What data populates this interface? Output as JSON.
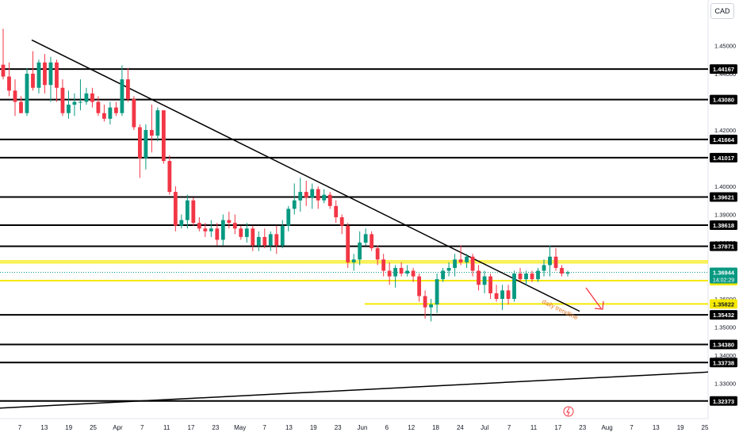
{
  "currency": "CAD",
  "chart_data": {
    "type": "candlestick",
    "ylim": [
      1.32,
      1.46
    ],
    "price_ticks": [
      "1.45000",
      "1.44000",
      "1.43000",
      "1.42000",
      "1.41000",
      "1.40000",
      "1.39000",
      "1.38000",
      "1.36000",
      "1.35000",
      "1.34000",
      "1.33000"
    ],
    "time_ticks": [
      "7",
      "13",
      "19",
      "25",
      "Apr",
      "7",
      "11",
      "17",
      "23",
      "May",
      "7",
      "13",
      "19",
      "23",
      "Jun",
      "6",
      "12",
      "18",
      "24",
      "Jul",
      "7",
      "11",
      "17",
      "23",
      "Aug",
      "7",
      "13",
      "19",
      "25"
    ],
    "horizontal_levels": [
      {
        "price": 1.44167,
        "label": "1.44167"
      },
      {
        "price": 1.4308,
        "label": "1.43080"
      },
      {
        "price": 1.41664,
        "label": "1.41664"
      },
      {
        "price": 1.41017,
        "label": "1.41017"
      },
      {
        "price": 1.39621,
        "label": "1.39621"
      },
      {
        "price": 1.38618,
        "label": "1.38618"
      },
      {
        "price": 1.37871,
        "label": "1.37871"
      },
      {
        "price": 1.35432,
        "label": "1.35432"
      },
      {
        "price": 1.3438,
        "label": "1.34380"
      },
      {
        "price": 1.33738,
        "label": "1.33738"
      },
      {
        "price": 1.32373,
        "label": "1.32373"
      }
    ],
    "yellow_levels": [
      {
        "price": 1.36647,
        "label": "1.36647"
      },
      {
        "price": 1.35822,
        "label": "1.35822"
      }
    ],
    "current_price": {
      "price": 1.36944,
      "label": "1.36944",
      "countdown": "14:02:29"
    },
    "annotation": "daily trendline",
    "colors": {
      "up": "#089981",
      "down": "#f23645",
      "level": "#000000",
      "zone": "#f5e900",
      "current": "#089981",
      "arrow": "#f23645",
      "annotation": "#e07b2a"
    },
    "candles": [
      {
        "o": 1.4432,
        "h": 1.456,
        "l": 1.438,
        "c": 1.439
      },
      {
        "o": 1.439,
        "h": 1.444,
        "l": 1.432,
        "c": 1.434
      },
      {
        "o": 1.434,
        "h": 1.438,
        "l": 1.425,
        "c": 1.43
      },
      {
        "o": 1.43,
        "h": 1.432,
        "l": 1.426,
        "c": 1.426
      },
      {
        "o": 1.426,
        "h": 1.442,
        "l": 1.425,
        "c": 1.44
      },
      {
        "o": 1.44,
        "h": 1.448,
        "l": 1.434,
        "c": 1.435
      },
      {
        "o": 1.435,
        "h": 1.445,
        "l": 1.433,
        "c": 1.444
      },
      {
        "o": 1.444,
        "h": 1.447,
        "l": 1.433,
        "c": 1.436
      },
      {
        "o": 1.436,
        "h": 1.446,
        "l": 1.43,
        "c": 1.444
      },
      {
        "o": 1.444,
        "h": 1.445,
        "l": 1.43,
        "c": 1.435
      },
      {
        "o": 1.435,
        "h": 1.438,
        "l": 1.425,
        "c": 1.426
      },
      {
        "o": 1.426,
        "h": 1.434,
        "l": 1.424,
        "c": 1.429
      },
      {
        "o": 1.429,
        "h": 1.433,
        "l": 1.425,
        "c": 1.43
      },
      {
        "o": 1.43,
        "h": 1.438,
        "l": 1.427,
        "c": 1.43
      },
      {
        "o": 1.43,
        "h": 1.435,
        "l": 1.429,
        "c": 1.433
      },
      {
        "o": 1.433,
        "h": 1.435,
        "l": 1.428,
        "c": 1.43
      },
      {
        "o": 1.43,
        "h": 1.432,
        "l": 1.425,
        "c": 1.426
      },
      {
        "o": 1.426,
        "h": 1.429,
        "l": 1.423,
        "c": 1.424
      },
      {
        "o": 1.424,
        "h": 1.43,
        "l": 1.422,
        "c": 1.428
      },
      {
        "o": 1.428,
        "h": 1.43,
        "l": 1.425,
        "c": 1.426
      },
      {
        "o": 1.426,
        "h": 1.443,
        "l": 1.425,
        "c": 1.438
      },
      {
        "o": 1.438,
        "h": 1.442,
        "l": 1.43,
        "c": 1.431
      },
      {
        "o": 1.431,
        "h": 1.432,
        "l": 1.42,
        "c": 1.421
      },
      {
        "o": 1.421,
        "h": 1.422,
        "l": 1.403,
        "c": 1.41
      },
      {
        "o": 1.41,
        "h": 1.422,
        "l": 1.406,
        "c": 1.42
      },
      {
        "o": 1.42,
        "h": 1.429,
        "l": 1.412,
        "c": 1.418
      },
      {
        "o": 1.418,
        "h": 1.428,
        "l": 1.416,
        "c": 1.427
      },
      {
        "o": 1.427,
        "h": 1.427,
        "l": 1.408,
        "c": 1.409
      },
      {
        "o": 1.409,
        "h": 1.411,
        "l": 1.397,
        "c": 1.398
      },
      {
        "o": 1.398,
        "h": 1.4,
        "l": 1.384,
        "c": 1.386
      },
      {
        "o": 1.386,
        "h": 1.39,
        "l": 1.385,
        "c": 1.388
      },
      {
        "o": 1.388,
        "h": 1.397,
        "l": 1.385,
        "c": 1.395
      },
      {
        "o": 1.395,
        "h": 1.396,
        "l": 1.386,
        "c": 1.387
      },
      {
        "o": 1.387,
        "h": 1.389,
        "l": 1.384,
        "c": 1.385
      },
      {
        "o": 1.385,
        "h": 1.387,
        "l": 1.382,
        "c": 1.384
      },
      {
        "o": 1.384,
        "h": 1.388,
        "l": 1.382,
        "c": 1.385
      },
      {
        "o": 1.385,
        "h": 1.387,
        "l": 1.379,
        "c": 1.381
      },
      {
        "o": 1.381,
        "h": 1.39,
        "l": 1.379,
        "c": 1.388
      },
      {
        "o": 1.388,
        "h": 1.391,
        "l": 1.385,
        "c": 1.387
      },
      {
        "o": 1.387,
        "h": 1.39,
        "l": 1.383,
        "c": 1.385
      },
      {
        "o": 1.385,
        "h": 1.386,
        "l": 1.381,
        "c": 1.382
      },
      {
        "o": 1.382,
        "h": 1.387,
        "l": 1.38,
        "c": 1.385
      },
      {
        "o": 1.385,
        "h": 1.386,
        "l": 1.377,
        "c": 1.379
      },
      {
        "o": 1.379,
        "h": 1.384,
        "l": 1.377,
        "c": 1.382
      },
      {
        "o": 1.382,
        "h": 1.385,
        "l": 1.378,
        "c": 1.379
      },
      {
        "o": 1.379,
        "h": 1.384,
        "l": 1.377,
        "c": 1.383
      },
      {
        "o": 1.383,
        "h": 1.386,
        "l": 1.376,
        "c": 1.379
      },
      {
        "o": 1.379,
        "h": 1.388,
        "l": 1.378,
        "c": 1.386
      },
      {
        "o": 1.386,
        "h": 1.393,
        "l": 1.384,
        "c": 1.392
      },
      {
        "o": 1.392,
        "h": 1.401,
        "l": 1.39,
        "c": 1.395
      },
      {
        "o": 1.395,
        "h": 1.403,
        "l": 1.391,
        "c": 1.398
      },
      {
        "o": 1.398,
        "h": 1.402,
        "l": 1.393,
        "c": 1.396
      },
      {
        "o": 1.396,
        "h": 1.401,
        "l": 1.392,
        "c": 1.399
      },
      {
        "o": 1.399,
        "h": 1.4,
        "l": 1.392,
        "c": 1.395
      },
      {
        "o": 1.395,
        "h": 1.399,
        "l": 1.394,
        "c": 1.397
      },
      {
        "o": 1.397,
        "h": 1.398,
        "l": 1.392,
        "c": 1.393
      },
      {
        "o": 1.393,
        "h": 1.395,
        "l": 1.387,
        "c": 1.389
      },
      {
        "o": 1.389,
        "h": 1.39,
        "l": 1.383,
        "c": 1.386
      },
      {
        "o": 1.386,
        "h": 1.387,
        "l": 1.371,
        "c": 1.373
      },
      {
        "o": 1.373,
        "h": 1.376,
        "l": 1.37,
        "c": 1.374
      },
      {
        "o": 1.374,
        "h": 1.384,
        "l": 1.372,
        "c": 1.38
      },
      {
        "o": 1.38,
        "h": 1.385,
        "l": 1.379,
        "c": 1.383
      },
      {
        "o": 1.383,
        "h": 1.384,
        "l": 1.377,
        "c": 1.378
      },
      {
        "o": 1.378,
        "h": 1.379,
        "l": 1.372,
        "c": 1.374
      },
      {
        "o": 1.374,
        "h": 1.376,
        "l": 1.368,
        "c": 1.37
      },
      {
        "o": 1.37,
        "h": 1.373,
        "l": 1.365,
        "c": 1.368
      },
      {
        "o": 1.368,
        "h": 1.372,
        "l": 1.364,
        "c": 1.371
      },
      {
        "o": 1.371,
        "h": 1.373,
        "l": 1.368,
        "c": 1.369
      },
      {
        "o": 1.369,
        "h": 1.372,
        "l": 1.368,
        "c": 1.37
      },
      {
        "o": 1.37,
        "h": 1.371,
        "l": 1.366,
        "c": 1.368
      },
      {
        "o": 1.368,
        "h": 1.369,
        "l": 1.359,
        "c": 1.361
      },
      {
        "o": 1.361,
        "h": 1.363,
        "l": 1.353,
        "c": 1.357
      },
      {
        "o": 1.357,
        "h": 1.36,
        "l": 1.352,
        "c": 1.358
      },
      {
        "o": 1.358,
        "h": 1.369,
        "l": 1.355,
        "c": 1.367
      },
      {
        "o": 1.367,
        "h": 1.371,
        "l": 1.366,
        "c": 1.37
      },
      {
        "o": 1.37,
        "h": 1.373,
        "l": 1.368,
        "c": 1.371
      },
      {
        "o": 1.371,
        "h": 1.376,
        "l": 1.368,
        "c": 1.374
      },
      {
        "o": 1.374,
        "h": 1.379,
        "l": 1.372,
        "c": 1.373
      },
      {
        "o": 1.373,
        "h": 1.376,
        "l": 1.371,
        "c": 1.375
      },
      {
        "o": 1.375,
        "h": 1.376,
        "l": 1.368,
        "c": 1.37
      },
      {
        "o": 1.37,
        "h": 1.372,
        "l": 1.363,
        "c": 1.365
      },
      {
        "o": 1.365,
        "h": 1.37,
        "l": 1.362,
        "c": 1.368
      },
      {
        "o": 1.368,
        "h": 1.369,
        "l": 1.36,
        "c": 1.362
      },
      {
        "o": 1.362,
        "h": 1.365,
        "l": 1.359,
        "c": 1.36
      },
      {
        "o": 1.36,
        "h": 1.365,
        "l": 1.356,
        "c": 1.363
      },
      {
        "o": 1.363,
        "h": 1.365,
        "l": 1.358,
        "c": 1.36
      },
      {
        "o": 1.36,
        "h": 1.37,
        "l": 1.359,
        "c": 1.369
      },
      {
        "o": 1.369,
        "h": 1.371,
        "l": 1.366,
        "c": 1.367
      },
      {
        "o": 1.367,
        "h": 1.37,
        "l": 1.365,
        "c": 1.369
      },
      {
        "o": 1.369,
        "h": 1.37,
        "l": 1.366,
        "c": 1.367
      },
      {
        "o": 1.367,
        "h": 1.371,
        "l": 1.366,
        "c": 1.37
      },
      {
        "o": 1.37,
        "h": 1.374,
        "l": 1.368,
        "c": 1.372
      },
      {
        "o": 1.372,
        "h": 1.379,
        "l": 1.368,
        "c": 1.375
      },
      {
        "o": 1.375,
        "h": 1.378,
        "l": 1.37,
        "c": 1.371
      },
      {
        "o": 1.371,
        "h": 1.372,
        "l": 1.368,
        "c": 1.369
      },
      {
        "o": 1.369,
        "h": 1.37,
        "l": 1.368,
        "c": 1.3694
      }
    ]
  }
}
